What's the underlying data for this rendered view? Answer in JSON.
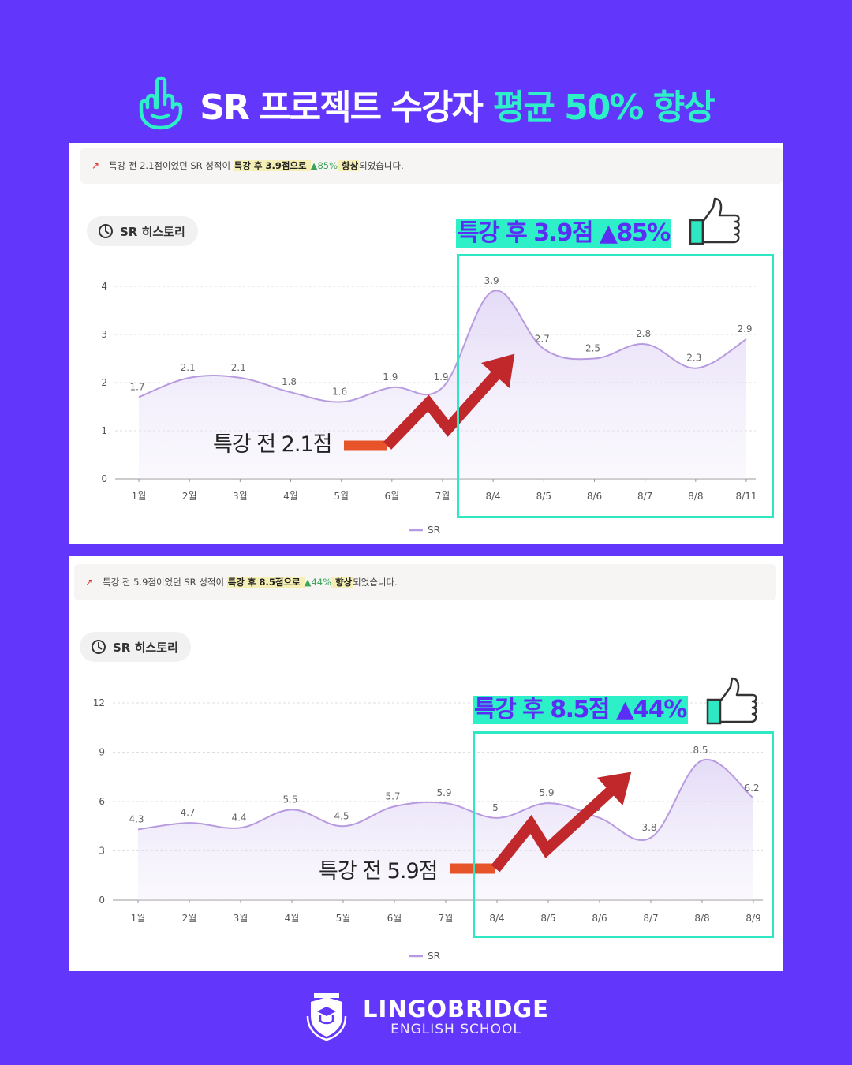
{
  "headline": {
    "part1": "SR 프로젝트 수강자",
    "part2": "평균 50% 향상",
    "icon": "pointing-finger-icon"
  },
  "colors": {
    "background": "#6236fb",
    "accent": "#2ef0c8",
    "line": "#b79ae0",
    "arrow": "#c0282b",
    "arrow_base": "#e8542a"
  },
  "panels": [
    {
      "notice": {
        "pre": "특강 전 2.1점이었던 SR 성적이 ",
        "hl1": "특강 후 3.9점으로 ",
        "pct": "▲85%",
        "hl2": " 향상",
        "post": "되었습니다."
      },
      "pill_label": "SR 히스토리",
      "callout": "특강 후 3.9점 ▲85%",
      "before_label": "특강 전 2.1점",
      "legend": "SR"
    },
    {
      "notice": {
        "pre": "특강 전 5.9점이었던 SR 성적이 ",
        "hl1": "특강 후 8.5점으로 ",
        "pct": "▲44%",
        "hl2": " 향상",
        "post": "되었습니다."
      },
      "pill_label": "SR 히스토리",
      "callout": "특강 후 8.5점 ▲44%",
      "before_label": "특강 전 5.9점",
      "legend": "SR"
    }
  ],
  "chart_data": [
    {
      "type": "area",
      "categories": [
        "1월",
        "2월",
        "3월",
        "4월",
        "5월",
        "6월",
        "7월",
        "8/4",
        "8/5",
        "8/6",
        "8/7",
        "8/8",
        "8/11"
      ],
      "series": [
        {
          "name": "SR",
          "values": [
            1.7,
            2.1,
            2.1,
            1.8,
            1.6,
            1.9,
            1.9,
            3.9,
            2.7,
            2.5,
            2.8,
            2.3,
            2.9
          ]
        }
      ],
      "yticks": [
        0,
        1,
        2,
        3,
        4
      ],
      "ylim": [
        0,
        4
      ],
      "grid": true,
      "legend": "bottom"
    },
    {
      "type": "area",
      "categories": [
        "1월",
        "2월",
        "3월",
        "4월",
        "5월",
        "6월",
        "7월",
        "8/4",
        "8/5",
        "8/6",
        "8/7",
        "8/8",
        "8/9"
      ],
      "series": [
        {
          "name": "SR",
          "values": [
            4.3,
            4.7,
            4.4,
            5.5,
            4.5,
            5.7,
            5.9,
            5,
            5.9,
            5,
            3.8,
            8.5,
            6.2
          ]
        }
      ],
      "yticks": [
        0,
        3,
        6,
        9,
        12
      ],
      "ylim": [
        0,
        12
      ],
      "grid": true,
      "legend": "bottom"
    }
  ],
  "logo": {
    "name": "LINGOBRIDGE",
    "sub": "ENGLISH SCHOOL",
    "icon": "school-crest-icon"
  }
}
